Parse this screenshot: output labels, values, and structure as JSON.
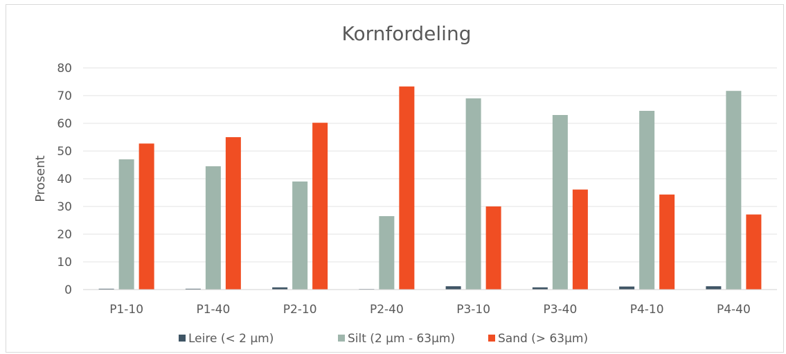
{
  "chart_data": {
    "type": "bar",
    "title": "Kornfordeling",
    "xlabel": "",
    "ylabel": "Prosent",
    "ylim": [
      0,
      80
    ],
    "yticks": [
      0,
      10,
      20,
      30,
      40,
      50,
      60,
      70,
      80
    ],
    "grid": true,
    "legend_position": "bottom",
    "categories": [
      "P1-10",
      "P1-40",
      "P2-10",
      "P2-40",
      "P3-10",
      "P3-40",
      "P4-10",
      "P4-40"
    ],
    "series": [
      {
        "name": "Leire (< 2 µm)",
        "color": "#3f5565",
        "values": [
          0.3,
          0.3,
          0.8,
          0.2,
          1.2,
          0.8,
          1.1,
          1.2
        ]
      },
      {
        "name": "Silt (2 µm - 63µm)",
        "color": "#9fb6ac",
        "values": [
          47,
          44.5,
          39,
          26.5,
          69,
          63,
          64.5,
          71.7
        ]
      },
      {
        "name": "Sand (> 63µm)",
        "color": "#f04e23",
        "values": [
          52.7,
          55,
          60.2,
          73.3,
          30,
          36.1,
          34.3,
          27.1
        ]
      }
    ]
  }
}
